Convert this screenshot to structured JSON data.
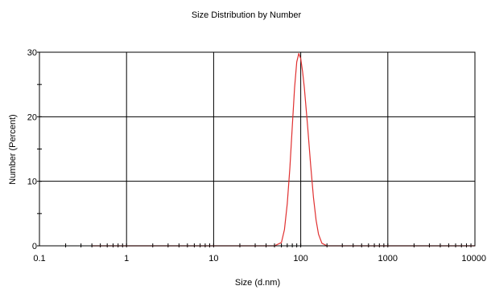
{
  "chart_data": {
    "type": "line",
    "title": "Size Distribution by Number",
    "xlabel": "Size (d.nm)",
    "ylabel": "Number (Percent)",
    "x_scale": "log",
    "xlim": [
      0.1,
      10000
    ],
    "ylim": [
      0,
      30
    ],
    "x_ticks": [
      {
        "value": 0.1,
        "label": "0.1"
      },
      {
        "value": 1,
        "label": "1"
      },
      {
        "value": 10,
        "label": "10"
      },
      {
        "value": 100,
        "label": "100"
      },
      {
        "value": 1000,
        "label": "1000"
      },
      {
        "value": 10000,
        "label": "10000"
      }
    ],
    "y_ticks": [
      {
        "value": 0,
        "label": "0"
      },
      {
        "value": 10,
        "label": "10"
      },
      {
        "value": 20,
        "label": "20"
      },
      {
        "value": 30,
        "label": "30"
      }
    ],
    "grid": true,
    "series": [
      {
        "color": "#e03030",
        "x": [
          0.4,
          1,
          5,
          20,
          50,
          60,
          65,
          70,
          75,
          80,
          85,
          90,
          95,
          100,
          105,
          110,
          120,
          130,
          140,
          150,
          160,
          175,
          200,
          300,
          1000,
          10000
        ],
        "y": [
          0,
          0,
          0,
          0,
          0,
          0.5,
          2.5,
          6.5,
          12,
          18.5,
          24.5,
          28.5,
          29.8,
          29,
          27,
          24.5,
          18.5,
          12.5,
          7.5,
          4,
          1.8,
          0.4,
          0,
          0,
          0,
          0
        ]
      }
    ]
  }
}
